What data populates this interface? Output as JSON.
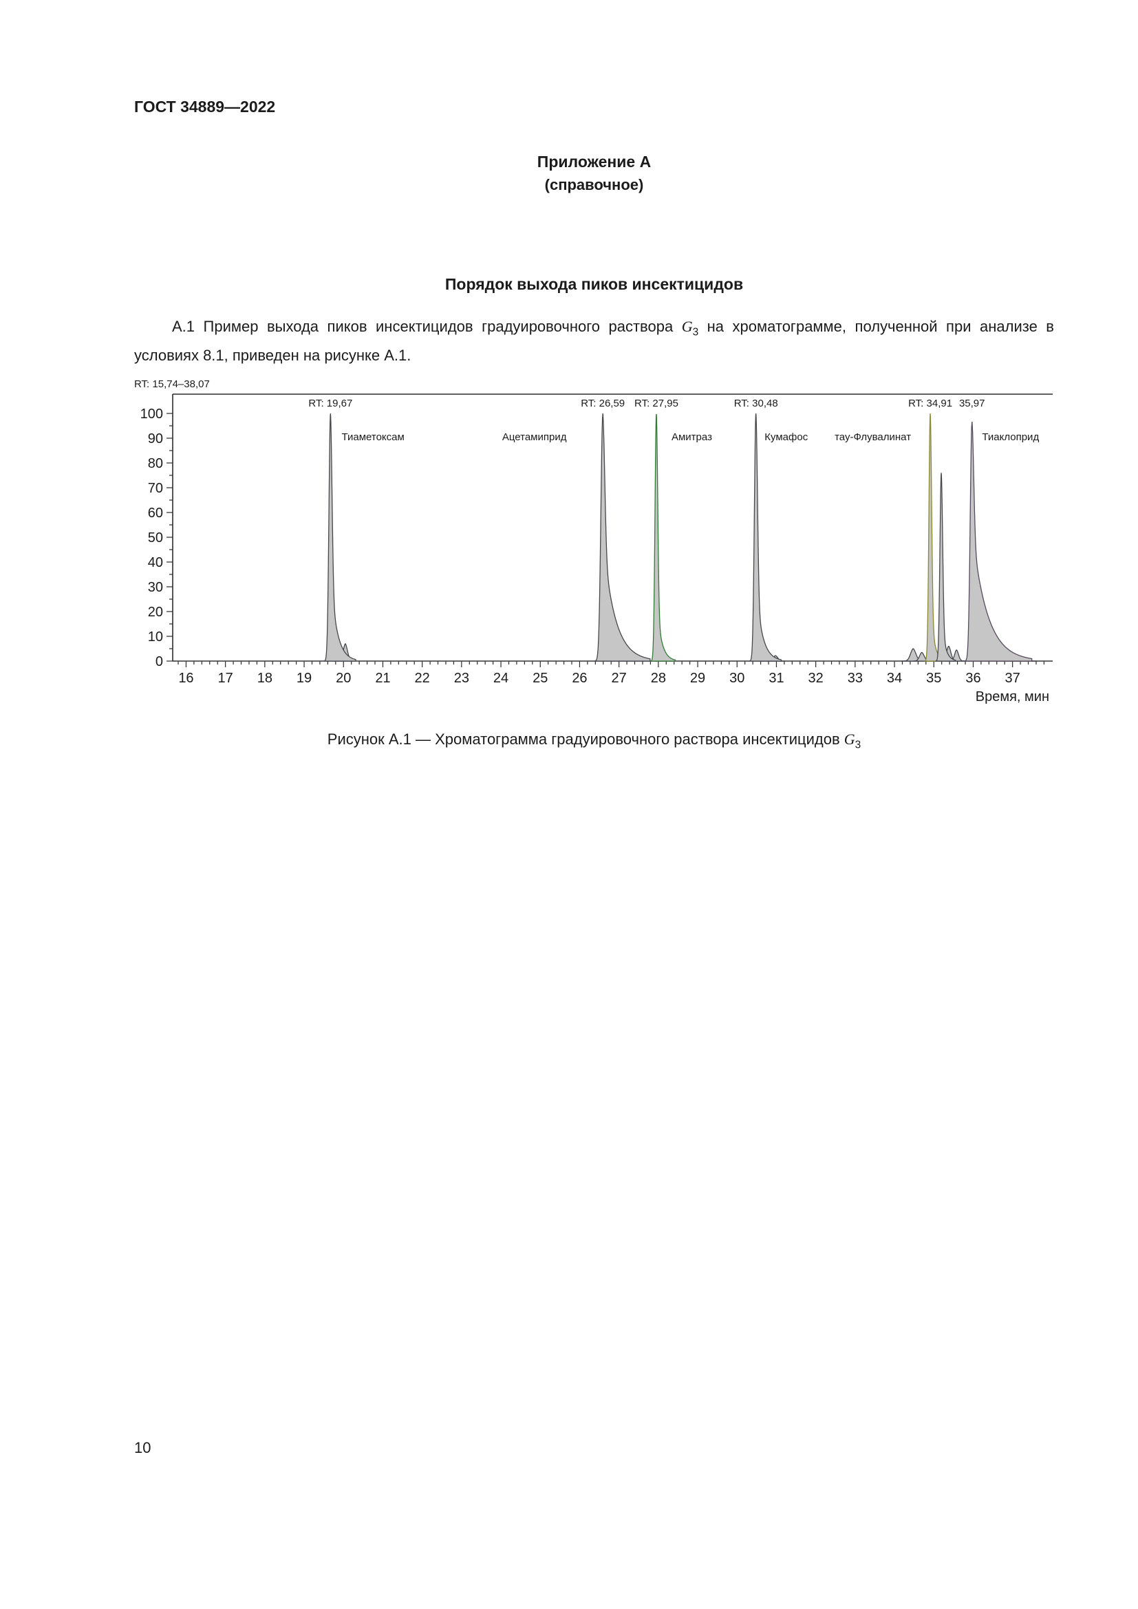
{
  "page": {
    "header": "ГОСТ 34889—2022",
    "appendix_title": "Приложение А",
    "appendix_subtitle": "(справочное)",
    "section_title": "Порядок выхода пиков инсектицидов",
    "paragraph": {
      "part1": "А.1 Пример выхода пиков инсектицидов градуировочного раствора ",
      "symbol": "G",
      "symbol_sub": "3",
      "part2": " на хроматограмме, полученной при анализе в условиях 8.1, приведен на рисунке А.1."
    },
    "figure_caption": {
      "part1": "Рисунок А.1 — Хроматограмма градуировочного раствора инсектицидов ",
      "symbol": "G",
      "symbol_sub": "3"
    },
    "page_number": "10"
  },
  "chart_data": {
    "type": "line",
    "title": "Хроматограмма градуировочного раствора инсектицидов G3",
    "rt_range_label": "RT: 15,74–38,07",
    "xlabel": "Время, мин",
    "ylabel": "",
    "xlim": [
      15.74,
      38.07
    ],
    "ylim": [
      0,
      100
    ],
    "grid": false,
    "x_ticks": [
      16,
      17,
      18,
      19,
      20,
      21,
      22,
      23,
      24,
      25,
      26,
      27,
      28,
      29,
      30,
      31,
      32,
      33,
      34,
      35,
      36,
      37
    ],
    "y_ticks": [
      0,
      10,
      20,
      30,
      40,
      50,
      60,
      70,
      80,
      90,
      100
    ],
    "peaks": [
      {
        "name": "Тиаметоксам",
        "rt": 19.67,
        "rt_label": "RT: 19,67",
        "height": 100,
        "sigma": 0.04,
        "tau": 0.16,
        "tail_frac": 0.35,
        "label_x": 20.75,
        "stroke": "#45474b",
        "fill": "#c6c6c6"
      },
      {
        "name": "Ацетамиприд",
        "rt": 26.59,
        "rt_label": "RT: 26,59",
        "height": 100,
        "sigma": 0.05,
        "tau": 0.3,
        "tail_frac": 0.5,
        "label_x": 24.85,
        "stroke": "#45474b",
        "fill": "#c6c6c6"
      },
      {
        "name": "Амитраз",
        "rt": 27.95,
        "rt_label": "RT: 27,95",
        "height": 100,
        "sigma": 0.035,
        "tau": 0.12,
        "tail_frac": 0.25,
        "label_x": 28.85,
        "stroke": "#2f7d34",
        "fill": "#c6c6c6"
      },
      {
        "name": "Кумафос",
        "rt": 30.48,
        "rt_label": "RT: 30,48",
        "height": 100,
        "sigma": 0.04,
        "tau": 0.16,
        "tail_frac": 0.3,
        "label_x": 31.25,
        "stroke": "#45474b",
        "fill": "#c6c6c6"
      },
      {
        "name": "тау-Флувалинат",
        "rt": 34.91,
        "rt_label": "RT: 34,91",
        "height": 100,
        "sigma": 0.035,
        "tau": 0.09,
        "tail_frac": 0.25,
        "label_x": 33.45,
        "stroke": "#8a8a2e",
        "fill": "#c6c6c6"
      },
      {
        "name": "",
        "rt": 35.19,
        "rt_label": "",
        "height": 76,
        "sigma": 0.035,
        "tau": 0.09,
        "tail_frac": 0.25,
        "stroke": "#45474b",
        "fill": "#c6c6c6"
      },
      {
        "name": "Тиаклоприд",
        "rt": 35.97,
        "rt_label": "35,97",
        "height": 97,
        "sigma": 0.045,
        "tau": 0.38,
        "tail_frac": 0.55,
        "label_x": 36.95,
        "stroke": "#554a5e",
        "fill": "#c6c6c6"
      }
    ],
    "minor_peaks": [
      {
        "rt": 20.05,
        "height": 7.0,
        "sigma": 0.055,
        "tau": 0.06,
        "tail_frac": 0.25
      },
      {
        "rt": 28.12,
        "height": 3.5,
        "sigma": 0.05,
        "tau": 0.05,
        "tail_frac": 0.2
      },
      {
        "rt": 30.72,
        "height": 3.0,
        "sigma": 0.05,
        "tau": 0.05,
        "tail_frac": 0.2
      },
      {
        "rt": 30.98,
        "height": 2.2,
        "sigma": 0.06,
        "tau": 0.05,
        "tail_frac": 0.2
      },
      {
        "rt": 34.48,
        "height": 5.0,
        "sigma": 0.07,
        "tau": 0.06,
        "tail_frac": 0.2
      },
      {
        "rt": 34.7,
        "height": 3.5,
        "sigma": 0.06,
        "tau": 0.05,
        "tail_frac": 0.2
      },
      {
        "rt": 35.38,
        "height": 6.0,
        "sigma": 0.055,
        "tau": 0.06,
        "tail_frac": 0.2
      },
      {
        "rt": 35.58,
        "height": 4.5,
        "sigma": 0.05,
        "tau": 0.05,
        "tail_frac": 0.2
      },
      {
        "rt": 37.0,
        "height": 2.5,
        "sigma": 0.09,
        "tau": 0.06,
        "tail_frac": 0.2
      },
      {
        "rt": 37.25,
        "height": 1.8,
        "sigma": 0.09,
        "tau": 0.06,
        "tail_frac": 0.2
      }
    ]
  }
}
